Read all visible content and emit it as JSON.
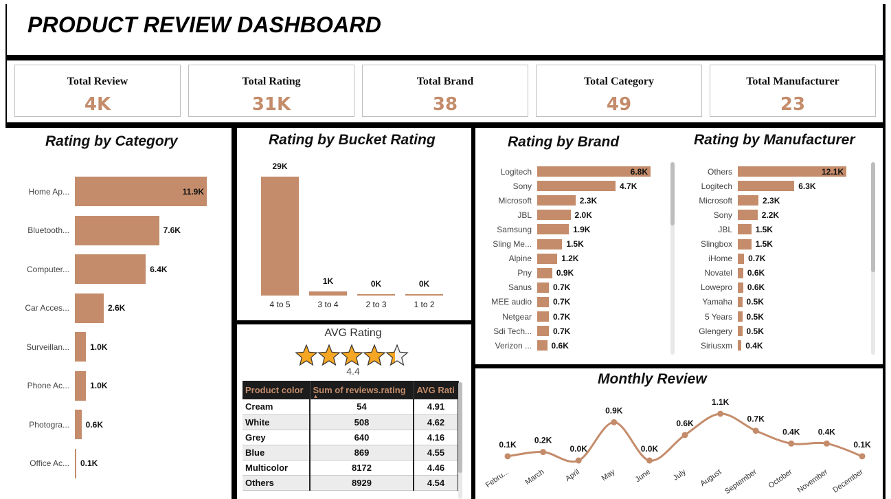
{
  "header": {
    "title": "PRODUCT REVIEW DASHBOARD"
  },
  "kpis": [
    {
      "label": "Total Review",
      "value": "4K"
    },
    {
      "label": "Total Rating",
      "value": "31K"
    },
    {
      "label": "Total Brand",
      "value": "38"
    },
    {
      "label": "Total Category",
      "value": "49"
    },
    {
      "label": "Total Manufacturer",
      "value": "23"
    }
  ],
  "colors": {
    "accent": "#c48c6b",
    "star": "#f5a623",
    "frame": "#000000"
  },
  "avg_rating": {
    "title": "AVG Rating",
    "value_label": "4.4",
    "value": 4.4,
    "max": 5
  },
  "table": {
    "headers": [
      "Product color",
      "Sum of reviews.rating",
      "AVG Rati"
    ],
    "rows": [
      [
        "Cream",
        "54",
        "4.91"
      ],
      [
        "White",
        "508",
        "4.62"
      ],
      [
        "Grey",
        "640",
        "4.16"
      ],
      [
        "Blue",
        "869",
        "4.55"
      ],
      [
        "Multicolor",
        "8172",
        "4.46"
      ],
      [
        "Others",
        "8929",
        "4.54"
      ]
    ]
  },
  "chart_data": [
    {
      "id": "category",
      "type": "bar",
      "orientation": "horizontal",
      "title": "Rating by Category",
      "categories": [
        "Home Ap...",
        "Bluetooth...",
        "Computer...",
        "Car Acces...",
        "Surveillan...",
        "Phone Ac...",
        "Photogra...",
        "Office Ac..."
      ],
      "values": [
        11900,
        7600,
        6400,
        2600,
        1000,
        1000,
        600,
        100
      ],
      "labels": [
        "11.9K",
        "7.6K",
        "6.4K",
        "2.6K",
        "1.0K",
        "1.0K",
        "0.6K",
        "0.1K"
      ]
    },
    {
      "id": "bucket",
      "type": "bar",
      "orientation": "vertical",
      "title": "Rating by Bucket Rating",
      "categories": [
        "4 to 5",
        "3 to 4",
        "2 to 3",
        "1 to 2"
      ],
      "values": [
        29000,
        1000,
        300,
        200
      ],
      "labels": [
        "29K",
        "1K",
        "0K",
        "0K"
      ]
    },
    {
      "id": "brand",
      "type": "bar",
      "orientation": "horizontal",
      "title": "Rating by Brand",
      "categories": [
        "Logitech",
        "Sony",
        "Microsoft",
        "JBL",
        "Samsung",
        "Sling Me...",
        "Alpine",
        "Pny",
        "Sanus",
        "MEE audio",
        "Netgear",
        "Sdi Tech...",
        "Verizon ..."
      ],
      "values": [
        6800,
        4700,
        2300,
        2000,
        1900,
        1500,
        1200,
        900,
        700,
        700,
        700,
        700,
        600
      ],
      "labels": [
        "6.8K",
        "4.7K",
        "2.3K",
        "2.0K",
        "1.9K",
        "1.5K",
        "1.2K",
        "0.9K",
        "0.7K",
        "0.7K",
        "0.7K",
        "0.7K",
        "0.6K"
      ]
    },
    {
      "id": "manufacturer",
      "type": "bar",
      "orientation": "horizontal",
      "title": "Rating by Manufacturer",
      "categories": [
        "Others",
        "Logitech",
        "Microsoft",
        "Sony",
        "JBL",
        "Slingbox",
        "iHome",
        "Novatel",
        "Lowepro",
        "Yamaha",
        "5 Years",
        "Glengery",
        "Siriusxm"
      ],
      "values": [
        12100,
        6300,
        2300,
        2200,
        1500,
        1500,
        700,
        600,
        600,
        500,
        500,
        500,
        400
      ],
      "labels": [
        "12.1K",
        "6.3K",
        "2.3K",
        "2.2K",
        "1.5K",
        "1.5K",
        "0.7K",
        "0.6K",
        "0.6K",
        "0.5K",
        "0.5K",
        "0.5K",
        "0.4K"
      ]
    },
    {
      "id": "monthly",
      "type": "line",
      "title": "Monthly Review",
      "categories": [
        "Febru...",
        "March",
        "April",
        "May",
        "June",
        "July",
        "August",
        "September",
        "October",
        "November",
        "December"
      ],
      "values": [
        100,
        200,
        0,
        900,
        0,
        600,
        1100,
        700,
        400,
        400,
        100
      ],
      "labels": [
        "0.1K",
        "0.2K",
        "0.0K",
        "0.9K",
        "0.0K",
        "0.6K",
        "1.1K",
        "0.7K",
        "0.4K",
        "0.4K",
        "0.1K"
      ]
    }
  ]
}
